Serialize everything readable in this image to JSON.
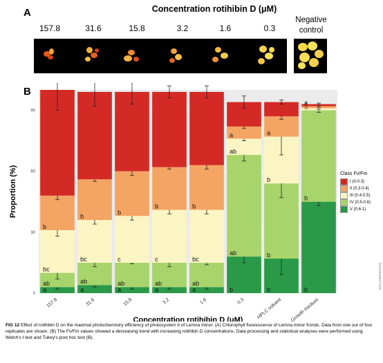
{
  "panel_a": {
    "letter": "A",
    "title": "Concentration rotihibin D (μM)",
    "concentrations": [
      "157.8",
      "31.6",
      "15.8",
      "3.2",
      "1.6",
      "0.3"
    ],
    "negative_control": [
      "Negative",
      "control"
    ]
  },
  "panel_b": {
    "letter": "B"
  },
  "legend": {
    "title": "Class Fv/Fm",
    "items": [
      {
        "label": "I (0-0.3)",
        "color": "#d42a26"
      },
      {
        "label": "II (0.3-0.4)",
        "color": "#f4a463"
      },
      {
        "label": "III (0.4-0.5)",
        "color": "#fbf5c4"
      },
      {
        "label": "IV (0.5-0.6)",
        "color": "#a8d46c"
      },
      {
        "label": "V (0.6-1)",
        "color": "#2a9a48"
      }
    ]
  },
  "caption": {
    "lead": "FIG 12",
    "text": "Effect of rotihibin D on the maximal photochemistry efficiency of photosystem II of Lemna minor. (A) Chlorophyll fluorescence of Lemna minor fronds. Data from one out of four replicates are shown. (B) The Fv/Fm values showed a decreasing trend with increasing rotihibin D concentrations. Data processing and statistical analyses were performed using Welch's t test and Tukey's post hoc test (B)."
  },
  "side_note": "Downloaded from",
  "chart_data": {
    "type": "bar",
    "stacked": true,
    "title": "",
    "xlabel": "Concentration rotihibin D (μM)",
    "ylabel": "Proportion (%)",
    "ylim": [
      0,
      100
    ],
    "yticks": [
      0,
      30,
      60,
      90
    ],
    "categories": [
      "157.8",
      "31.6",
      "15.8",
      "3.2",
      "1.6",
      "0.3",
      "HPLC solvent",
      "Growth medium"
    ],
    "series": [
      {
        "name": "V (0.6-1)",
        "color": "#2a9a48",
        "values": [
          3,
          4,
          3,
          3,
          3,
          18,
          17,
          45
        ],
        "errors": [
          1,
          1,
          1,
          1,
          1,
          3,
          8,
          2
        ],
        "letters": [
          "a",
          "a",
          "a",
          "a",
          "a",
          "b",
          "b",
          "b"
        ]
      },
      {
        "name": "IV (0.5-0.6)",
        "color": "#a8d46c",
        "values": [
          7,
          11,
          12,
          12,
          12,
          50,
          37,
          45
        ],
        "errors": [
          3,
          2,
          0.5,
          2,
          1,
          3,
          7,
          1
        ],
        "letters": [
          "ab",
          "ab",
          "ab",
          "ab",
          "ab",
          "ab",
          "b",
          "b"
        ]
      },
      {
        "name": "III (0.4-0.5)",
        "color": "#fbf5c4",
        "values": [
          21,
          21,
          23,
          26,
          26,
          8,
          23,
          1
        ],
        "errors": [
          3,
          2,
          2,
          2,
          2,
          1,
          9,
          0.5
        ],
        "letters": [
          "bc",
          "bc",
          "c",
          "c",
          "bc",
          "ab",
          "b",
          "a"
        ]
      },
      {
        "name": "II (0.3-0.4)",
        "color": "#f4a463",
        "values": [
          17,
          20,
          22,
          21,
          22,
          6,
          10,
          1
        ],
        "errors": [
          2,
          1,
          2,
          1,
          2,
          1,
          1.5,
          0.5
        ],
        "letters": [
          "b",
          "b",
          "b",
          "b",
          "b",
          "a",
          "a",
          "a"
        ]
      },
      {
        "name": "I (0-0.3)",
        "color": "#d42a26",
        "values": [
          52,
          43,
          39,
          37,
          36,
          12,
          7,
          1
        ],
        "errors": [
          10,
          7,
          6,
          3,
          3,
          3,
          1,
          0.5
        ],
        "letters": [
          "",
          "",
          "",
          "",
          "",
          "",
          "",
          "a"
        ]
      }
    ]
  }
}
